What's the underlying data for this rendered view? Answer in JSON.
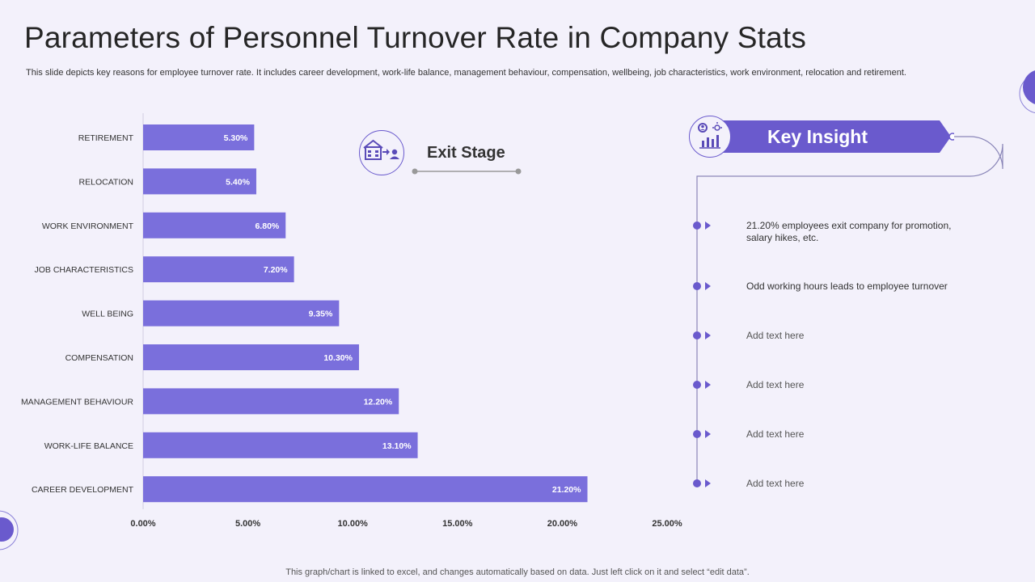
{
  "header": {
    "title": "Parameters of Personnel Turnover Rate in Company Stats",
    "subtitle": "This slide depicts key reasons for employee turnover rate. It includes career development, work-life balance, management behaviour, compensation, wellbeing, job characteristics, work environment, relocation and retirement."
  },
  "chart_data": {
    "type": "bar",
    "orientation": "horizontal",
    "categories": [
      "RETIREMENT",
      "RELOCATION",
      "WORK ENVIRONMENT",
      "JOB CHARACTERISTICS",
      "WELL BEING",
      "COMPENSATION",
      "MANAGEMENT BEHAVIOUR",
      "WORK-LIFE BALANCE",
      "CAREER DEVELOPMENT"
    ],
    "values": [
      5.3,
      5.4,
      6.8,
      7.2,
      9.35,
      10.3,
      12.2,
      13.1,
      21.2
    ],
    "value_labels": [
      "5.30%",
      "5.40%",
      "6.80%",
      "7.20%",
      "9.35%",
      "10.30%",
      "12.20%",
      "13.10%",
      "21.20%"
    ],
    "xlim": [
      0,
      25
    ],
    "x_ticks": [
      0,
      5,
      10,
      15,
      20,
      25
    ],
    "x_tick_labels": [
      "0.00%",
      "5.00%",
      "10.00%",
      "15.00%",
      "20.00%",
      "25.00%"
    ],
    "bar_color": "#7a6fdc",
    "grid": false,
    "legend": "none"
  },
  "exit_stage": {
    "title": "Exit Stage"
  },
  "key_insight": {
    "title": "Key Insight",
    "items": [
      "21.20% employees exit company for promotion, salary hikes, etc.",
      "Odd working hours leads to employee turnover",
      "Add text here",
      "Add text here",
      "Add text here",
      "Add text here"
    ]
  },
  "colors": {
    "accent": "#6a5acd",
    "background": "#f3f1fb"
  },
  "footer": {
    "note": "This graph/chart is linked to excel, and changes automatically based on data. Just left click on it and select “edit data”."
  }
}
